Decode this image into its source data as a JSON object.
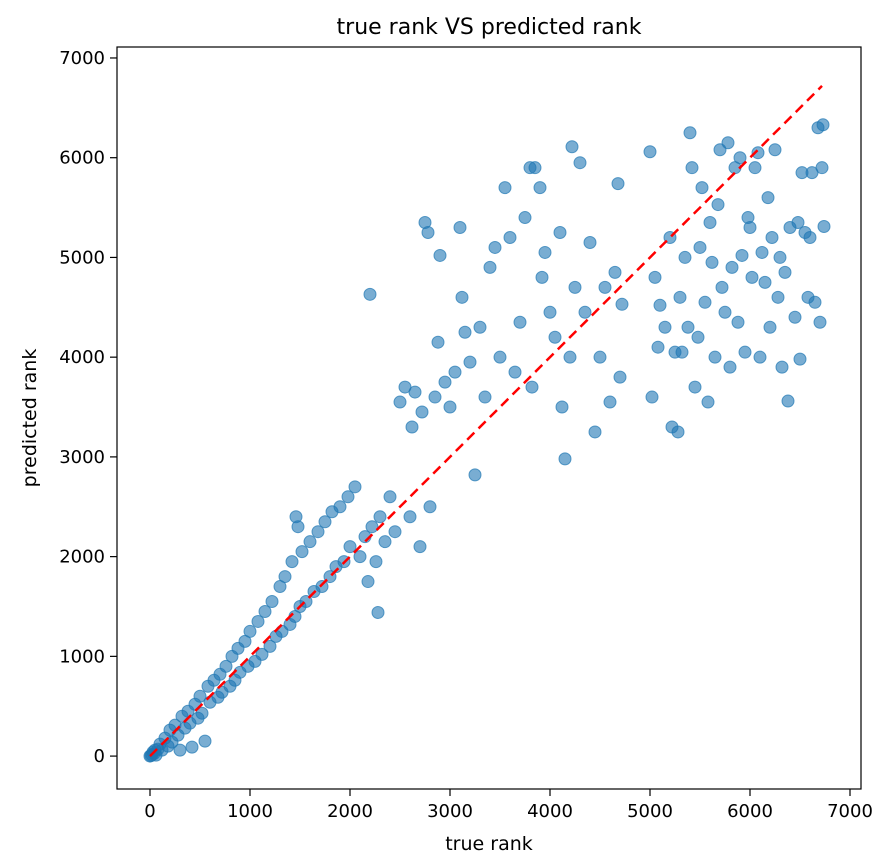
{
  "chart_data": {
    "type": "scatter",
    "title": "true rank VS predicted rank",
    "xlabel": "true rank",
    "ylabel": "predicted rank",
    "xlim": [
      -330,
      7110
    ],
    "ylim": [
      -330,
      7110
    ],
    "xticks": [
      0,
      1000,
      2000,
      3000,
      4000,
      5000,
      6000,
      7000
    ],
    "yticks": [
      0,
      1000,
      2000,
      3000,
      4000,
      5000,
      6000,
      7000
    ],
    "grid": false,
    "marker_color": "#1f77b4",
    "marker_alpha": 0.6,
    "reference_line": {
      "style": "dashed",
      "color": "#ff0000",
      "x": [
        0,
        6720
      ],
      "y": [
        0,
        6720
      ]
    },
    "series": [
      {
        "points": [
          [
            0,
            0
          ],
          [
            10,
            5
          ],
          [
            20,
            15
          ],
          [
            30,
            40
          ],
          [
            40,
            25
          ],
          [
            50,
            60
          ],
          [
            60,
            10
          ],
          [
            80,
            70
          ],
          [
            100,
            120
          ],
          [
            120,
            60
          ],
          [
            150,
            180
          ],
          [
            180,
            100
          ],
          [
            200,
            260
          ],
          [
            220,
            140
          ],
          [
            250,
            310
          ],
          [
            280,
            210
          ],
          [
            300,
            60
          ],
          [
            320,
            400
          ],
          [
            350,
            280
          ],
          [
            380,
            450
          ],
          [
            400,
            330
          ],
          [
            420,
            90
          ],
          [
            450,
            520
          ],
          [
            480,
            380
          ],
          [
            500,
            600
          ],
          [
            520,
            430
          ],
          [
            550,
            150
          ],
          [
            580,
            700
          ],
          [
            600,
            540
          ],
          [
            640,
            760
          ],
          [
            680,
            590
          ],
          [
            700,
            820
          ],
          [
            720,
            640
          ],
          [
            760,
            900
          ],
          [
            800,
            700
          ],
          [
            820,
            1000
          ],
          [
            850,
            760
          ],
          [
            880,
            1080
          ],
          [
            900,
            840
          ],
          [
            950,
            1150
          ],
          [
            980,
            900
          ],
          [
            1000,
            1250
          ],
          [
            1050,
            950
          ],
          [
            1080,
            1350
          ],
          [
            1120,
            1020
          ],
          [
            1150,
            1450
          ],
          [
            1200,
            1100
          ],
          [
            1220,
            1550
          ],
          [
            1260,
            1200
          ],
          [
            1300,
            1700
          ],
          [
            1320,
            1250
          ],
          [
            1350,
            1800
          ],
          [
            1400,
            1320
          ],
          [
            1420,
            1950
          ],
          [
            1450,
            1400
          ],
          [
            1460,
            2400
          ],
          [
            1480,
            2300
          ],
          [
            1500,
            1500
          ],
          [
            1520,
            2050
          ],
          [
            1560,
            1550
          ],
          [
            1600,
            2150
          ],
          [
            1640,
            1650
          ],
          [
            1680,
            2250
          ],
          [
            1720,
            1700
          ],
          [
            1750,
            2350
          ],
          [
            1800,
            1800
          ],
          [
            1820,
            2450
          ],
          [
            1860,
            1900
          ],
          [
            1900,
            2500
          ],
          [
            1940,
            1950
          ],
          [
            1980,
            2600
          ],
          [
            2000,
            2100
          ],
          [
            2050,
            2700
          ],
          [
            2100,
            2000
          ],
          [
            2150,
            2200
          ],
          [
            2180,
            1750
          ],
          [
            2200,
            4630
          ],
          [
            2220,
            2300
          ],
          [
            2260,
            1950
          ],
          [
            2280,
            1440
          ],
          [
            2300,
            2400
          ],
          [
            2350,
            2150
          ],
          [
            2400,
            2600
          ],
          [
            2450,
            2250
          ],
          [
            2500,
            3550
          ],
          [
            2550,
            3700
          ],
          [
            2600,
            2400
          ],
          [
            2620,
            3300
          ],
          [
            2650,
            3650
          ],
          [
            2700,
            2100
          ],
          [
            2720,
            3450
          ],
          [
            2750,
            5350
          ],
          [
            2780,
            5250
          ],
          [
            2800,
            2500
          ],
          [
            2850,
            3600
          ],
          [
            2880,
            4150
          ],
          [
            2900,
            5020
          ],
          [
            2950,
            3750
          ],
          [
            3000,
            3500
          ],
          [
            3050,
            3850
          ],
          [
            3100,
            5300
          ],
          [
            3120,
            4600
          ],
          [
            3150,
            4250
          ],
          [
            3200,
            3950
          ],
          [
            3250,
            2820
          ],
          [
            3300,
            4300
          ],
          [
            3350,
            3600
          ],
          [
            3400,
            4900
          ],
          [
            3450,
            5100
          ],
          [
            3500,
            4000
          ],
          [
            3550,
            5700
          ],
          [
            3600,
            5200
          ],
          [
            3650,
            3850
          ],
          [
            3700,
            4350
          ],
          [
            3750,
            5400
          ],
          [
            3800,
            5900
          ],
          [
            3820,
            3700
          ],
          [
            3850,
            5900
          ],
          [
            3900,
            5700
          ],
          [
            3920,
            4800
          ],
          [
            3950,
            5050
          ],
          [
            4000,
            4450
          ],
          [
            4050,
            4200
          ],
          [
            4100,
            5250
          ],
          [
            4120,
            3500
          ],
          [
            4150,
            2980
          ],
          [
            4200,
            4000
          ],
          [
            4220,
            6110
          ],
          [
            4250,
            4700
          ],
          [
            4300,
            5950
          ],
          [
            4350,
            4450
          ],
          [
            4400,
            5150
          ],
          [
            4450,
            3250
          ],
          [
            4500,
            4000
          ],
          [
            4550,
            4700
          ],
          [
            4600,
            3550
          ],
          [
            4650,
            4850
          ],
          [
            4680,
            5740
          ],
          [
            4700,
            3800
          ],
          [
            4720,
            4530
          ],
          [
            5000,
            6060
          ],
          [
            5020,
            3600
          ],
          [
            5050,
            4800
          ],
          [
            5080,
            4100
          ],
          [
            5100,
            4520
          ],
          [
            5150,
            4300
          ],
          [
            5200,
            5200
          ],
          [
            5220,
            3300
          ],
          [
            5250,
            4050
          ],
          [
            5280,
            3250
          ],
          [
            5300,
            4600
          ],
          [
            5320,
            4050
          ],
          [
            5350,
            5000
          ],
          [
            5380,
            4300
          ],
          [
            5400,
            6250
          ],
          [
            5420,
            5900
          ],
          [
            5450,
            3700
          ],
          [
            5480,
            4200
          ],
          [
            5500,
            5100
          ],
          [
            5520,
            5700
          ],
          [
            5550,
            4550
          ],
          [
            5580,
            3550
          ],
          [
            5600,
            5350
          ],
          [
            5620,
            4950
          ],
          [
            5650,
            4000
          ],
          [
            5680,
            5530
          ],
          [
            5700,
            6080
          ],
          [
            5720,
            4700
          ],
          [
            5750,
            4450
          ],
          [
            5780,
            6150
          ],
          [
            5800,
            3900
          ],
          [
            5820,
            4900
          ],
          [
            5850,
            5900
          ],
          [
            5880,
            4350
          ],
          [
            5900,
            6000
          ],
          [
            5920,
            5020
          ],
          [
            5950,
            4050
          ],
          [
            5980,
            5400
          ],
          [
            6000,
            5300
          ],
          [
            6020,
            4800
          ],
          [
            6050,
            5900
          ],
          [
            6080,
            6050
          ],
          [
            6100,
            4000
          ],
          [
            6120,
            5050
          ],
          [
            6150,
            4750
          ],
          [
            6180,
            5600
          ],
          [
            6200,
            4300
          ],
          [
            6220,
            5200
          ],
          [
            6250,
            6080
          ],
          [
            6280,
            4600
          ],
          [
            6300,
            5000
          ],
          [
            6320,
            3900
          ],
          [
            6350,
            4850
          ],
          [
            6380,
            3560
          ],
          [
            6400,
            5300
          ],
          [
            6450,
            4400
          ],
          [
            6480,
            5350
          ],
          [
            6500,
            3980
          ],
          [
            6520,
            5850
          ],
          [
            6550,
            5250
          ],
          [
            6580,
            4600
          ],
          [
            6600,
            5200
          ],
          [
            6620,
            5850
          ],
          [
            6650,
            4550
          ],
          [
            6680,
            6300
          ],
          [
            6700,
            4350
          ],
          [
            6720,
            5900
          ],
          [
            6730,
            6330
          ],
          [
            6740,
            5310
          ]
        ]
      }
    ]
  }
}
